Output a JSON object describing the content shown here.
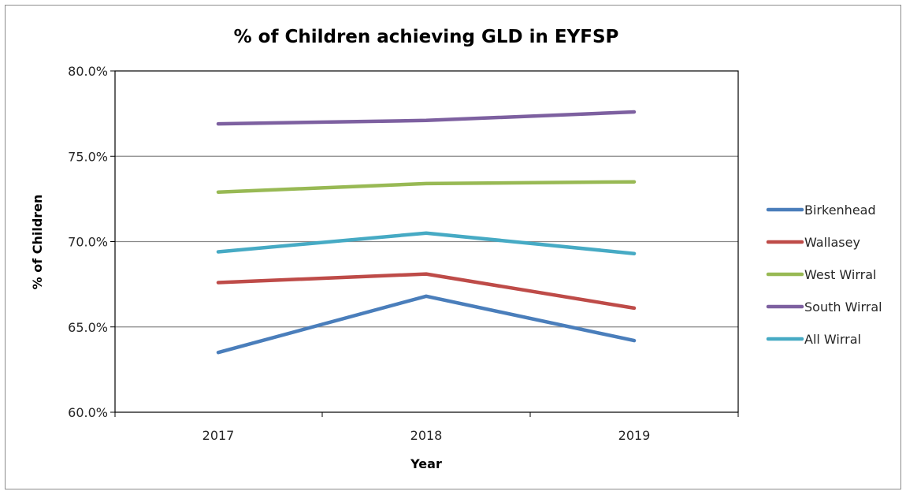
{
  "chart_data": {
    "type": "line",
    "title": "% of Children achieving GLD in EYFSP",
    "xlabel": "Year",
    "ylabel": "% of Children",
    "categories": [
      "2017",
      "2018",
      "2019"
    ],
    "ylim": [
      60,
      80
    ],
    "ytick_values": [
      60,
      65,
      70,
      75,
      80
    ],
    "ytick_labels": [
      "60.0%",
      "65.0%",
      "70.0%",
      "75.0%",
      "80.0%"
    ],
    "grid": true,
    "legend_position": "right",
    "series": [
      {
        "name": "Birkenhead",
        "color": "#4a7ebb",
        "values": [
          63.5,
          66.8,
          64.2
        ]
      },
      {
        "name": "Wallasey",
        "color": "#be4b48",
        "values": [
          67.6,
          68.1,
          66.1
        ]
      },
      {
        "name": "West Wirral",
        "color": "#98b954",
        "values": [
          72.9,
          73.4,
          73.5
        ]
      },
      {
        "name": "South Wirral",
        "color": "#7d60a0",
        "values": [
          76.9,
          77.1,
          77.6
        ]
      },
      {
        "name": "All Wirral",
        "color": "#46aac4",
        "values": [
          69.4,
          70.5,
          69.3
        ]
      }
    ]
  }
}
